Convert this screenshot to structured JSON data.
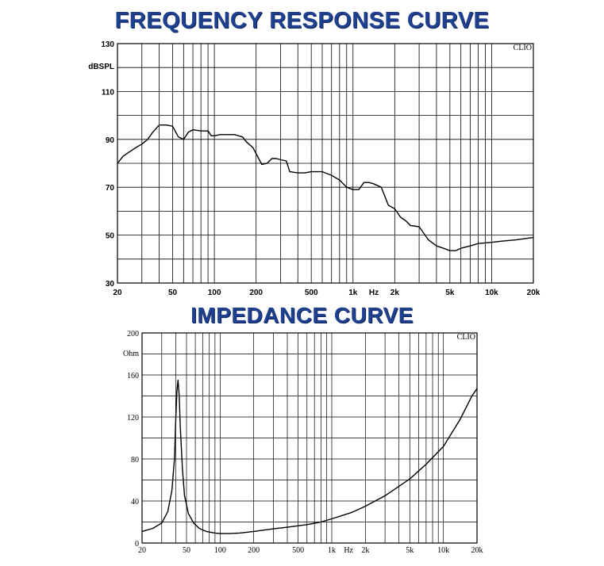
{
  "charts_titles": {
    "frequency": "FREQUENCY RESPONSE CURVE",
    "impedance": "IMPEDANCE CURVE"
  },
  "chart_data": [
    {
      "type": "line",
      "title": "FREQUENCY RESPONSE CURVE",
      "watermark": "CLIO",
      "ylabel": "dBSPL",
      "xunit_label": "Hz",
      "xscale": "log",
      "xlim": [
        20,
        20000
      ],
      "ylim": [
        30,
        130
      ],
      "y_ticks": [
        30,
        50,
        70,
        90,
        110,
        130
      ],
      "x_tick_labels": [
        {
          "v": 20,
          "t": "20"
        },
        {
          "v": 50,
          "t": "50"
        },
        {
          "v": 100,
          "t": "100"
        },
        {
          "v": 200,
          "t": "200"
        },
        {
          "v": 500,
          "t": "500"
        },
        {
          "v": 1000,
          "t": "1k"
        },
        {
          "v": 2000,
          "t": "2k"
        },
        {
          "v": 5000,
          "t": "5k"
        },
        {
          "v": 10000,
          "t": "10k"
        },
        {
          "v": 20000,
          "t": "20k"
        }
      ],
      "grid": true,
      "series": [
        {
          "x": [
            20,
            22,
            24,
            27,
            30,
            33,
            36,
            40,
            45,
            50,
            55,
            60,
            65,
            70,
            80,
            90,
            95,
            100,
            110,
            120,
            140,
            160,
            170,
            190,
            200,
            220,
            240,
            260,
            280,
            300,
            330,
            350,
            400,
            450,
            500,
            600,
            700,
            800,
            900,
            1000,
            1100,
            1200,
            1300,
            1400,
            1600,
            1800,
            2000,
            2200,
            2400,
            2600,
            3000,
            3500,
            4000,
            4500,
            5000,
            5500,
            6000,
            7000,
            8000,
            10000,
            12000,
            15000,
            20000
          ],
          "y": [
            80,
            83,
            84.5,
            86.5,
            88,
            90,
            93,
            96,
            96,
            95.5,
            91,
            90,
            93,
            94,
            93.5,
            93.5,
            91.5,
            91.5,
            92,
            92,
            92,
            91,
            89,
            86.5,
            84,
            79.5,
            80,
            82,
            82,
            81.5,
            81,
            76.5,
            76,
            76,
            76.5,
            76.5,
            75,
            73,
            70,
            69,
            69,
            72,
            72,
            71.5,
            70,
            62.5,
            61,
            57.5,
            56,
            54,
            53.5,
            48,
            45.5,
            44.5,
            43.5,
            43.5,
            44.5,
            45.5,
            46.5,
            47,
            47.5,
            48,
            49
          ]
        }
      ]
    },
    {
      "type": "line",
      "title": "IMPEDANCE CURVE",
      "watermark": "CLIO",
      "ylabel": "Ohm",
      "xunit_label": "Hz",
      "xscale": "log",
      "xlim": [
        20,
        20000
      ],
      "ylim": [
        0,
        200
      ],
      "y_ticks": [
        0,
        40,
        80,
        120,
        160,
        200
      ],
      "x_tick_labels": [
        {
          "v": 20,
          "t": "20"
        },
        {
          "v": 50,
          "t": "50"
        },
        {
          "v": 100,
          "t": "100"
        },
        {
          "v": 200,
          "t": "200"
        },
        {
          "v": 500,
          "t": "500"
        },
        {
          "v": 1000,
          "t": "1k"
        },
        {
          "v": 2000,
          "t": "2k"
        },
        {
          "v": 5000,
          "t": "5k"
        },
        {
          "v": 10000,
          "t": "10k"
        },
        {
          "v": 20000,
          "t": "20k"
        }
      ],
      "grid": true,
      "series": [
        {
          "x": [
            20,
            25,
            30,
            34,
            37,
            39,
            40,
            41,
            42,
            43,
            44,
            46,
            48,
            52,
            58,
            65,
            75,
            90,
            100,
            120,
            150,
            200,
            300,
            400,
            600,
            800,
            1000,
            1500,
            2000,
            3000,
            5000,
            7000,
            10000,
            14000,
            18000,
            20000
          ],
          "y": [
            11,
            14,
            19,
            30,
            50,
            80,
            115,
            145,
            155,
            140,
            110,
            70,
            45,
            28,
            19,
            14,
            11,
            9.5,
            9,
            9,
            9.5,
            11,
            13.5,
            15,
            17.5,
            20,
            23,
            29,
            35,
            45,
            61,
            75,
            92,
            117,
            140,
            147
          ]
        }
      ]
    }
  ]
}
